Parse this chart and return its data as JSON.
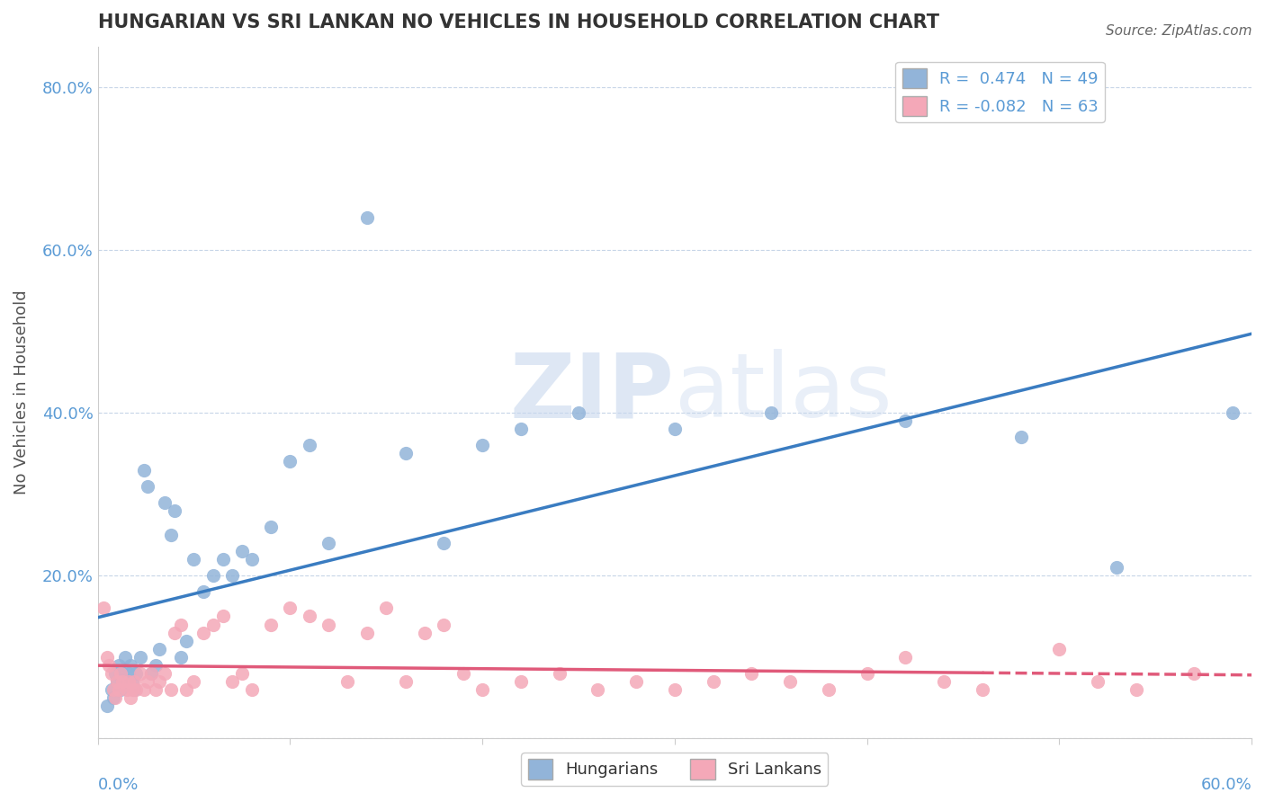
{
  "title": "HUNGARIAN VS SRI LANKAN NO VEHICLES IN HOUSEHOLD CORRELATION CHART",
  "source": "Source: ZipAtlas.com",
  "ylabel": "No Vehicles in Household",
  "xlim": [
    0.0,
    0.6
  ],
  "ylim": [
    0.0,
    0.85
  ],
  "hungarian_R": 0.474,
  "hungarian_N": 49,
  "srilankan_R": -0.082,
  "srilankan_N": 63,
  "hungarian_color": "#92b4d9",
  "srilankan_color": "#f4a8b8",
  "hungarian_line_color": "#3a7cc1",
  "srilankan_line_color": "#e05a7a",
  "watermark_zip": "ZIP",
  "watermark_atlas": "atlas",
  "hungarian_x": [
    0.005,
    0.007,
    0.008,
    0.009,
    0.01,
    0.011,
    0.012,
    0.013,
    0.014,
    0.015,
    0.016,
    0.017,
    0.018,
    0.019,
    0.02,
    0.022,
    0.024,
    0.026,
    0.028,
    0.03,
    0.032,
    0.035,
    0.038,
    0.04,
    0.043,
    0.046,
    0.05,
    0.055,
    0.06,
    0.065,
    0.07,
    0.075,
    0.08,
    0.09,
    0.1,
    0.11,
    0.12,
    0.14,
    0.16,
    0.18,
    0.2,
    0.22,
    0.25,
    0.3,
    0.35,
    0.42,
    0.48,
    0.53,
    0.59
  ],
  "hungarian_y": [
    0.04,
    0.06,
    0.05,
    0.08,
    0.07,
    0.09,
    0.06,
    0.08,
    0.1,
    0.07,
    0.08,
    0.09,
    0.07,
    0.06,
    0.08,
    0.1,
    0.33,
    0.31,
    0.08,
    0.09,
    0.11,
    0.29,
    0.25,
    0.28,
    0.1,
    0.12,
    0.22,
    0.18,
    0.2,
    0.22,
    0.2,
    0.23,
    0.22,
    0.26,
    0.34,
    0.36,
    0.24,
    0.64,
    0.35,
    0.24,
    0.36,
    0.38,
    0.4,
    0.38,
    0.4,
    0.39,
    0.37,
    0.21,
    0.4
  ],
  "srilankan_x": [
    0.003,
    0.005,
    0.006,
    0.007,
    0.008,
    0.009,
    0.01,
    0.011,
    0.012,
    0.013,
    0.015,
    0.016,
    0.017,
    0.018,
    0.019,
    0.02,
    0.022,
    0.024,
    0.026,
    0.028,
    0.03,
    0.032,
    0.035,
    0.038,
    0.04,
    0.043,
    0.046,
    0.05,
    0.055,
    0.06,
    0.065,
    0.07,
    0.075,
    0.08,
    0.09,
    0.1,
    0.11,
    0.12,
    0.13,
    0.14,
    0.15,
    0.16,
    0.17,
    0.18,
    0.19,
    0.2,
    0.22,
    0.24,
    0.26,
    0.28,
    0.3,
    0.32,
    0.34,
    0.36,
    0.38,
    0.4,
    0.42,
    0.44,
    0.46,
    0.5,
    0.52,
    0.54,
    0.57
  ],
  "srilankan_y": [
    0.16,
    0.1,
    0.09,
    0.08,
    0.06,
    0.05,
    0.07,
    0.06,
    0.08,
    0.07,
    0.06,
    0.07,
    0.05,
    0.06,
    0.07,
    0.06,
    0.08,
    0.06,
    0.07,
    0.08,
    0.06,
    0.07,
    0.08,
    0.06,
    0.13,
    0.14,
    0.06,
    0.07,
    0.13,
    0.14,
    0.15,
    0.07,
    0.08,
    0.06,
    0.14,
    0.16,
    0.15,
    0.14,
    0.07,
    0.13,
    0.16,
    0.07,
    0.13,
    0.14,
    0.08,
    0.06,
    0.07,
    0.08,
    0.06,
    0.07,
    0.06,
    0.07,
    0.08,
    0.07,
    0.06,
    0.08,
    0.1,
    0.07,
    0.06,
    0.11,
    0.07,
    0.06,
    0.08
  ]
}
